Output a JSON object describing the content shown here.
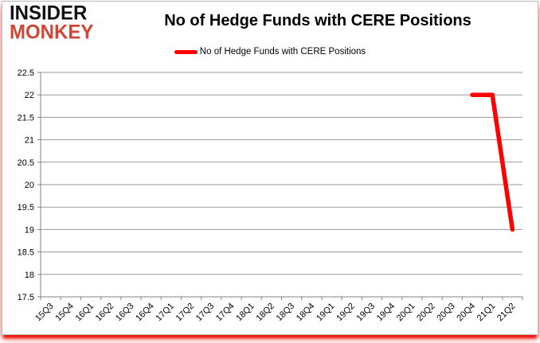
{
  "brand": {
    "line1": "INSIDER",
    "line2": "MONKEY",
    "line1_color": "#121212",
    "line2_color": "#d04434"
  },
  "header": {
    "title": "No of Hedge Funds with CERE Positions"
  },
  "legend": {
    "label": "No of Hedge Funds with CERE Positions",
    "marker_color": "#ff0000",
    "position": "top"
  },
  "chart_data": {
    "type": "line",
    "title": "No of Hedge Funds with CERE Positions",
    "xlabel": "",
    "ylabel": "",
    "categories": [
      "15Q3",
      "15Q4",
      "16Q1",
      "16Q2",
      "16Q3",
      "16Q4",
      "17Q1",
      "17Q2",
      "17Q3",
      "17Q4",
      "18Q1",
      "18Q2",
      "18Q3",
      "18Q4",
      "19Q1",
      "19Q2",
      "19Q3",
      "19Q4",
      "20Q1",
      "20Q2",
      "20Q3",
      "20Q4",
      "21Q1",
      "21Q2"
    ],
    "series": [
      {
        "name": "No of Hedge Funds with CERE Positions",
        "color": "#ff0000",
        "values": [
          null,
          null,
          null,
          null,
          null,
          null,
          null,
          null,
          null,
          null,
          null,
          null,
          null,
          null,
          null,
          null,
          null,
          null,
          null,
          null,
          null,
          22,
          22,
          19
        ]
      }
    ],
    "ylim": [
      17.5,
      22.5
    ],
    "y_ticks": [
      {
        "value": 22.5,
        "label": "22.5"
      },
      {
        "value": 22.0,
        "label": "22"
      },
      {
        "value": 21.5,
        "label": "21.5"
      },
      {
        "value": 21.0,
        "label": "21"
      },
      {
        "value": 20.5,
        "label": "20.5"
      },
      {
        "value": 20.0,
        "label": "20"
      },
      {
        "value": 19.5,
        "label": "19.5"
      },
      {
        "value": 19.0,
        "label": "19"
      },
      {
        "value": 18.5,
        "label": "18.5"
      },
      {
        "value": 18.0,
        "label": "18"
      },
      {
        "value": 17.5,
        "label": "17.5"
      }
    ],
    "grid": "horizontal",
    "legend_position": "top",
    "grid_color": "#999999",
    "axis_color": "#808080",
    "tick_label_color": "#000000"
  }
}
